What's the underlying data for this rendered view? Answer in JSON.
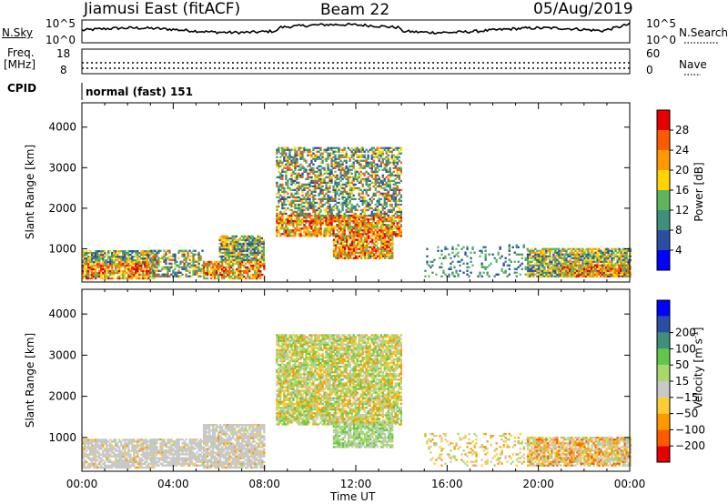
{
  "header": {
    "station": "Jiamusi East (fitACF)",
    "beam": "Beam 22",
    "date": "05/Aug/2019"
  },
  "noise_panel": {
    "left_label": "N.Sky",
    "right_label": "N.Search",
    "left_ticks": [
      "10^5",
      "10^0"
    ],
    "right_ticks": [
      "10^5",
      "10^0"
    ]
  },
  "freq_panel": {
    "left_label_1": "Freq.",
    "left_label_2": "[MHz]",
    "left_ticks": [
      "18",
      "8"
    ],
    "right_label": "Nave",
    "right_ticks": [
      "60",
      "0"
    ],
    "cpid_label": "CPID",
    "cpid_value": "normal (fast) 151"
  },
  "colors": {
    "power": [
      "#0000ff",
      "#2a4fa0",
      "#3f8f7a",
      "#5fb55a",
      "#ffd400",
      "#ff9900",
      "#ff5a00",
      "#e60000"
    ],
    "velocity": [
      "#e60000",
      "#ff5a00",
      "#ff9900",
      "#ffcc33",
      "#c8c8c8",
      "#a8d86a",
      "#5fc84a",
      "#3f8f7a",
      "#2a4fa0",
      "#0000ff"
    ]
  },
  "chart_data": [
    {
      "type": "heatmap",
      "quantity": "Power",
      "xlabel": "",
      "ylabel": "Slant Range [km]",
      "x_ticks": [
        "00:00",
        "04:00",
        "08:00",
        "12:00",
        "16:00",
        "20:00",
        "00:00"
      ],
      "y_ticks": [
        1000,
        2000,
        3000,
        4000
      ],
      "colorbar_label": "Power [dB]",
      "colorbar_ticks": [
        4,
        8,
        12,
        16,
        20,
        24,
        28
      ],
      "regions": [
        {
          "t0": 0.0,
          "t1": 3.2,
          "r0": 250,
          "r1": 650,
          "level": "high"
        },
        {
          "t0": 0.0,
          "t1": 3.2,
          "r0": 650,
          "r1": 950,
          "level": "mid"
        },
        {
          "t0": 3.0,
          "t1": 5.3,
          "r0": 300,
          "r1": 950,
          "level": "low"
        },
        {
          "t0": 5.3,
          "t1": 8.0,
          "r0": 250,
          "r1": 700,
          "level": "high"
        },
        {
          "t0": 6.0,
          "t1": 8.0,
          "r0": 700,
          "r1": 1300,
          "level": "mid"
        },
        {
          "t0": 8.5,
          "t1": 14.0,
          "r0": 1300,
          "r1": 1800,
          "level": "high"
        },
        {
          "t0": 8.5,
          "t1": 14.0,
          "r0": 1800,
          "r1": 3500,
          "level": "low"
        },
        {
          "t0": 11.0,
          "t1": 13.6,
          "r0": 750,
          "r1": 1300,
          "level": "high"
        },
        {
          "t0": 15.0,
          "t1": 19.5,
          "r0": 300,
          "r1": 1100,
          "level": "sparse"
        },
        {
          "t0": 19.5,
          "t1": 24.0,
          "r0": 300,
          "r1": 1000,
          "level": "mid"
        },
        {
          "t0": 21.0,
          "t1": 24.0,
          "r0": 300,
          "r1": 600,
          "level": "high"
        }
      ]
    },
    {
      "type": "heatmap",
      "quantity": "Velocity",
      "xlabel": "Time UT",
      "ylabel": "Slant Range [km]",
      "x_ticks": [
        "00:00",
        "04:00",
        "08:00",
        "12:00",
        "16:00",
        "20:00",
        "00:00"
      ],
      "y_ticks": [
        1000,
        2000,
        3000,
        4000
      ],
      "colorbar_label": "Velocity",
      "colorbar_unit": "[m s",
      "colorbar_unit_sup": "-1",
      "colorbar_unit_end": "]",
      "colorbar_ticks": [
        "200",
        "100",
        "50",
        "15",
        "−15",
        "−50",
        "−100",
        "−200"
      ],
      "regions": [
        {
          "t0": 0.0,
          "t1": 3.2,
          "r0": 250,
          "r1": 950,
          "level": "grey"
        },
        {
          "t0": 3.0,
          "t1": 5.3,
          "r0": 300,
          "r1": 950,
          "level": "grey"
        },
        {
          "t0": 5.3,
          "t1": 8.0,
          "r0": 250,
          "r1": 1300,
          "level": "grey"
        },
        {
          "t0": 8.5,
          "t1": 14.0,
          "r0": 1300,
          "r1": 1800,
          "level": "greenorange"
        },
        {
          "t0": 8.5,
          "t1": 14.0,
          "r0": 1800,
          "r1": 3500,
          "level": "greenorange"
        },
        {
          "t0": 11.0,
          "t1": 13.6,
          "r0": 750,
          "r1": 1300,
          "level": "green"
        },
        {
          "t0": 15.0,
          "t1": 19.5,
          "r0": 300,
          "r1": 1100,
          "level": "sparse"
        },
        {
          "t0": 19.5,
          "t1": 24.0,
          "r0": 300,
          "r1": 1000,
          "level": "mixed"
        }
      ]
    }
  ]
}
